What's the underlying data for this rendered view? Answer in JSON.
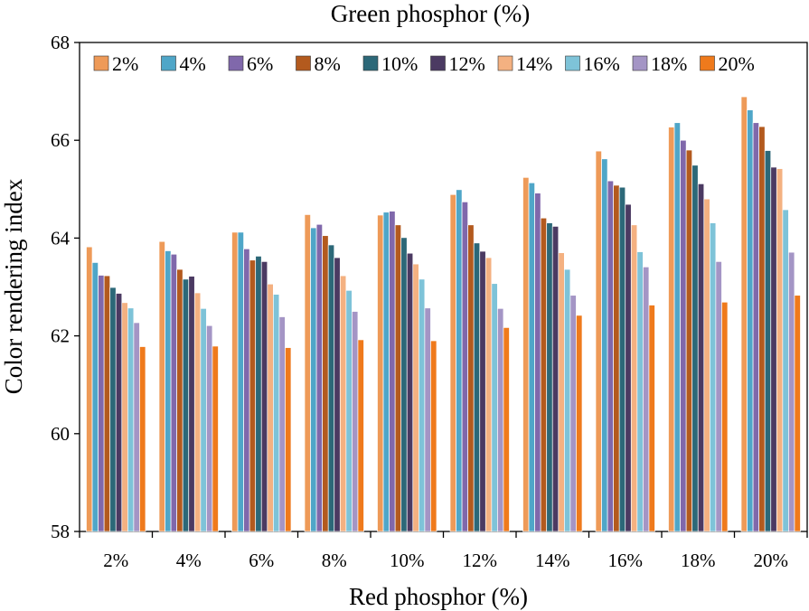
{
  "chart_data": {
    "type": "bar",
    "title": "Green phosphor (%)",
    "xlabel": "Red phosphor (%)",
    "ylabel": "Color rendering index",
    "ylim": [
      58,
      68
    ],
    "yticks": [
      58,
      60,
      62,
      64,
      66,
      68
    ],
    "ytick_labels": [
      "58",
      "60",
      "62",
      "64",
      "66",
      "68"
    ],
    "grid": false,
    "legend_position": "top",
    "categories": [
      "2%",
      "4%",
      "6%",
      "8%",
      "10%",
      "12%",
      "14%",
      "16%",
      "18%",
      "20%"
    ],
    "series": [
      {
        "name": "2%",
        "color": "#ee9a58",
        "values": [
          63.82,
          63.93,
          64.12,
          64.48,
          64.47,
          64.89,
          65.24,
          65.78,
          66.27,
          66.89
        ]
      },
      {
        "name": "4%",
        "color": "#4fa6c8",
        "values": [
          63.5,
          63.74,
          64.12,
          64.21,
          64.53,
          64.99,
          65.13,
          65.62,
          66.36,
          66.62
        ]
      },
      {
        "name": "6%",
        "color": "#8068ab",
        "values": [
          63.24,
          63.67,
          63.78,
          64.28,
          64.55,
          64.74,
          64.92,
          65.17,
          66.0,
          66.36
        ]
      },
      {
        "name": "8%",
        "color": "#b35a1e",
        "values": [
          63.23,
          63.36,
          63.55,
          64.05,
          64.27,
          64.27,
          64.41,
          65.08,
          65.8,
          66.28
        ]
      },
      {
        "name": "10%",
        "color": "#2c6878",
        "values": [
          62.99,
          63.16,
          63.63,
          63.86,
          64.01,
          63.9,
          64.31,
          65.04,
          65.49,
          65.79
        ]
      },
      {
        "name": "12%",
        "color": "#4b3a62",
        "values": [
          62.87,
          63.22,
          63.52,
          63.6,
          63.69,
          63.73,
          64.24,
          64.69,
          65.11,
          65.45
        ]
      },
      {
        "name": "14%",
        "color": "#f4b181",
        "values": [
          62.68,
          62.88,
          63.06,
          63.23,
          63.47,
          63.6,
          63.7,
          64.27,
          64.8,
          65.42
        ]
      },
      {
        "name": "16%",
        "color": "#7ec3d8",
        "values": [
          62.57,
          62.56,
          62.85,
          62.93,
          63.16,
          63.07,
          63.36,
          63.72,
          64.31,
          64.58
        ]
      },
      {
        "name": "18%",
        "color": "#a495c5",
        "values": [
          62.27,
          62.21,
          62.39,
          62.5,
          62.57,
          62.56,
          62.83,
          63.41,
          63.52,
          63.71
        ]
      },
      {
        "name": "20%",
        "color": "#ef7a1c",
        "values": [
          61.78,
          61.79,
          61.76,
          61.92,
          61.9,
          62.17,
          62.42,
          62.63,
          62.69,
          62.83
        ]
      }
    ]
  }
}
